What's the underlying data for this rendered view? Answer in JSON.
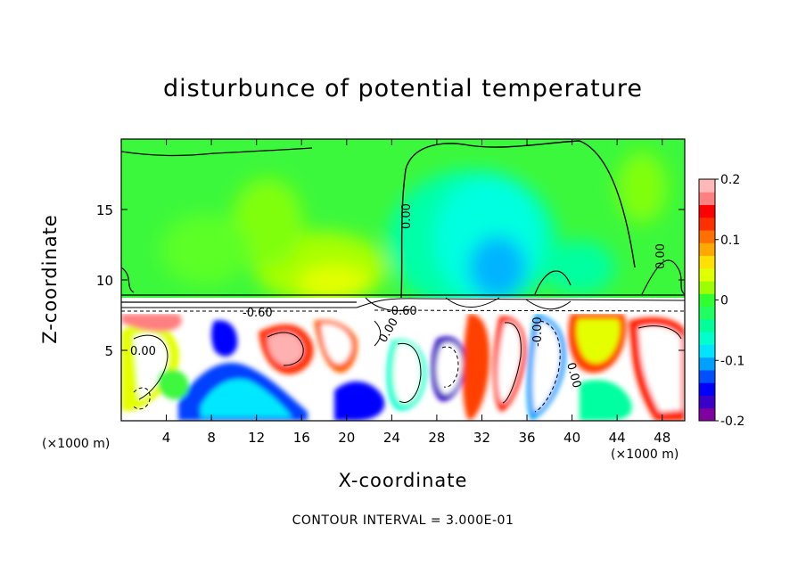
{
  "chart_data": {
    "type": "heatmap",
    "title": "disturbunce of potential temperature",
    "xlabel": "X-coordinate",
    "ylabel": "Z-coordinate",
    "x_unit": "(×1000 m)",
    "xlim": [
      0,
      50
    ],
    "ylim": [
      0,
      20
    ],
    "x_ticks": [
      4,
      8,
      12,
      16,
      20,
      24,
      28,
      32,
      36,
      40,
      44,
      48
    ],
    "y_ticks": [
      5,
      10,
      15
    ],
    "colorbar": {
      "range": [
        -0.2,
        0.2
      ],
      "tick_labels": [
        "0.2",
        "0.1",
        "0",
        "-0.1",
        "-0.2"
      ],
      "colors": [
        "#8000a0",
        "#3a00c8",
        "#0000ff",
        "#0050ff",
        "#00a0ff",
        "#00e4ff",
        "#00ffcc",
        "#00ff9a",
        "#20ff60",
        "#30ff30",
        "#9cff00",
        "#e0ff00",
        "#ffe000",
        "#ffa800",
        "#ff7000",
        "#ff3000",
        "#ff0000",
        "#ff8080",
        "#ffb8b8"
      ]
    },
    "contour_labels": [
      "0.00",
      "-0.60",
      "-0.60",
      "0.00",
      "0.00",
      "-0.00",
      "0.00",
      "0.00"
    ],
    "contour_interval_text": "CONTOUR INTERVAL = 3.000E-01"
  }
}
